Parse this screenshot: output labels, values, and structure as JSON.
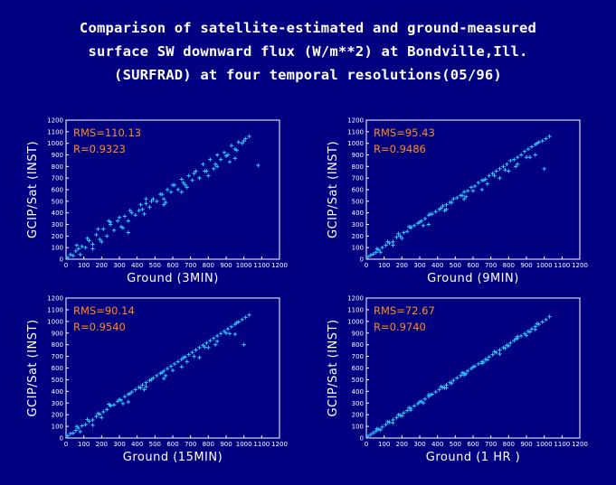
{
  "title_lines": [
    "Comparison of satellite-estimated and ground-measured",
    "surface SW downward flux (W/m**2) at Bondville,Ill.",
    "(SURFRAD) at four temporal resolutions(05/96)"
  ],
  "colors": {
    "background": "#000080",
    "axes": "#ffffff",
    "points": "#33ccff",
    "stats": "#ff8c1a"
  },
  "chart_data": [
    {
      "type": "scatter",
      "xlabel": "Ground (3MIN)",
      "ylabel": "GCIP/Sat (INST)",
      "xlim": [
        0,
        1200
      ],
      "ylim": [
        0,
        1200
      ],
      "xticks": [
        0,
        100,
        200,
        300,
        400,
        500,
        600,
        700,
        800,
        900,
        1000,
        1100,
        1200
      ],
      "yticks": [
        0,
        100,
        200,
        300,
        400,
        500,
        600,
        700,
        800,
        900,
        1000,
        1100,
        1200
      ],
      "annotations": [
        "RMS=110.13",
        "R=0.9323"
      ],
      "x": [
        10,
        25,
        40,
        55,
        70,
        90,
        110,
        130,
        150,
        170,
        190,
        210,
        230,
        250,
        270,
        290,
        310,
        330,
        350,
        370,
        390,
        410,
        430,
        450,
        470,
        490,
        510,
        530,
        550,
        570,
        590,
        610,
        630,
        650,
        670,
        690,
        710,
        730,
        750,
        770,
        790,
        810,
        830,
        850,
        870,
        890,
        910,
        930,
        950,
        970,
        990,
        1010,
        1030,
        60,
        120,
        180,
        240,
        300,
        360,
        420,
        480,
        540,
        600,
        660,
        720,
        780,
        840,
        900,
        960,
        150,
        250,
        350,
        450,
        550,
        650,
        750,
        850,
        950,
        1080,
        80,
        200,
        320,
        440,
        560,
        680,
        800,
        920,
        1000
      ],
      "y": [
        15,
        40,
        30,
        70,
        90,
        110,
        100,
        160,
        130,
        210,
        170,
        260,
        200,
        300,
        250,
        330,
        280,
        370,
        330,
        400,
        380,
        420,
        430,
        480,
        450,
        520,
        500,
        560,
        520,
        600,
        580,
        640,
        600,
        690,
        640,
        720,
        680,
        760,
        700,
        820,
        760,
        860,
        780,
        900,
        860,
        920,
        900,
        980,
        950,
        1010,
        1000,
        1040,
        1060,
        120,
        180,
        260,
        330,
        360,
        420,
        470,
        500,
        560,
        640,
        660,
        740,
        760,
        820,
        890,
        940,
        90,
        320,
        230,
        520,
        470,
        580,
        700,
        800,
        870,
        810,
        40,
        150,
        270,
        390,
        490,
        620,
        720,
        840,
        1020
      ]
    },
    {
      "type": "scatter",
      "xlabel": "Ground (9MIN)",
      "ylabel": "GCIP/Sat (INST)",
      "xlim": [
        0,
        1200
      ],
      "ylim": [
        0,
        1200
      ],
      "xticks": [
        0,
        100,
        200,
        300,
        400,
        500,
        600,
        700,
        800,
        900,
        1000,
        1100,
        1200
      ],
      "yticks": [
        0,
        100,
        200,
        300,
        400,
        500,
        600,
        700,
        800,
        900,
        1000,
        1100,
        1200
      ],
      "annotations": [
        "RMS=95.43",
        "R=0.9486"
      ],
      "x": [
        10,
        25,
        40,
        55,
        70,
        90,
        110,
        130,
        150,
        170,
        190,
        210,
        230,
        250,
        270,
        290,
        310,
        330,
        350,
        370,
        390,
        410,
        430,
        450,
        470,
        490,
        510,
        530,
        550,
        570,
        590,
        610,
        630,
        650,
        670,
        690,
        710,
        730,
        750,
        770,
        790,
        810,
        830,
        850,
        870,
        890,
        910,
        930,
        950,
        970,
        990,
        1010,
        1030,
        60,
        120,
        180,
        240,
        300,
        360,
        420,
        480,
        540,
        600,
        660,
        720,
        780,
        840,
        900,
        960,
        150,
        250,
        350,
        450,
        550,
        650,
        750,
        850,
        950,
        1000,
        80,
        200,
        320,
        440,
        560,
        680,
        800,
        920
      ],
      "y": [
        20,
        35,
        45,
        60,
        80,
        100,
        120,
        140,
        150,
        190,
        200,
        230,
        240,
        280,
        290,
        310,
        330,
        350,
        380,
        390,
        410,
        430,
        460,
        470,
        490,
        520,
        530,
        550,
        580,
        590,
        620,
        630,
        660,
        680,
        690,
        720,
        740,
        760,
        780,
        800,
        820,
        850,
        860,
        880,
        900,
        930,
        950,
        970,
        990,
        1010,
        1020,
        1040,
        1060,
        90,
        150,
        220,
        280,
        320,
        390,
        440,
        490,
        550,
        590,
        680,
        720,
        770,
        800,
        880,
        1000,
        120,
        270,
        300,
        430,
        520,
        600,
        700,
        820,
        900,
        780,
        60,
        180,
        290,
        420,
        540,
        650,
        760,
        880
      ]
    },
    {
      "type": "scatter",
      "xlabel": "Ground (15MIN)",
      "ylabel": "GCIP/Sat (INST)",
      "xlim": [
        0,
        1200
      ],
      "ylim": [
        0,
        1200
      ],
      "xticks": [
        0,
        100,
        200,
        300,
        400,
        500,
        600,
        700,
        800,
        900,
        1000,
        1100,
        1200
      ],
      "yticks": [
        0,
        100,
        200,
        300,
        400,
        500,
        600,
        700,
        800,
        900,
        1000,
        1100,
        1200
      ],
      "annotations": [
        "RMS=90.14",
        "R=0.9540"
      ],
      "x": [
        10,
        25,
        40,
        55,
        70,
        90,
        110,
        130,
        150,
        170,
        190,
        210,
        230,
        250,
        270,
        290,
        310,
        330,
        350,
        370,
        390,
        410,
        430,
        450,
        470,
        490,
        510,
        530,
        550,
        570,
        590,
        610,
        630,
        650,
        670,
        690,
        710,
        730,
        750,
        770,
        790,
        810,
        830,
        850,
        870,
        890,
        910,
        930,
        950,
        970,
        990,
        1010,
        1030,
        60,
        120,
        180,
        240,
        300,
        360,
        420,
        480,
        540,
        600,
        660,
        720,
        780,
        840,
        900,
        960,
        150,
        250,
        350,
        450,
        550,
        650,
        750,
        850,
        950,
        1000,
        80,
        200,
        320,
        440,
        560,
        680,
        800,
        920
      ],
      "y": [
        18,
        38,
        42,
        65,
        85,
        105,
        115,
        145,
        155,
        185,
        205,
        225,
        245,
        275,
        285,
        315,
        325,
        355,
        375,
        395,
        415,
        435,
        455,
        475,
        495,
        515,
        535,
        555,
        575,
        595,
        615,
        635,
        655,
        675,
        695,
        715,
        735,
        755,
        775,
        795,
        815,
        835,
        855,
        875,
        895,
        915,
        935,
        955,
        975,
        995,
        1015,
        1035,
        1055,
        100,
        160,
        210,
        290,
        330,
        380,
        430,
        500,
        560,
        580,
        690,
        700,
        780,
        800,
        900,
        990,
        110,
        280,
        310,
        440,
        510,
        610,
        690,
        830,
        890,
        800,
        55,
        175,
        295,
        415,
        535,
        655,
        775,
        895
      ]
    },
    {
      "type": "scatter",
      "xlabel": "Ground (1 HR )",
      "ylabel": "GCIP/Sat (INST)",
      "xlim": [
        0,
        1200
      ],
      "ylim": [
        0,
        1200
      ],
      "xticks": [
        0,
        100,
        200,
        300,
        400,
        500,
        600,
        700,
        800,
        900,
        1000,
        1100,
        1200
      ],
      "yticks": [
        0,
        100,
        200,
        300,
        400,
        500,
        600,
        700,
        800,
        900,
        1000,
        1100,
        1200
      ],
      "annotations": [
        "RMS=72.67",
        "R=0.9740"
      ],
      "x": [
        10,
        25,
        40,
        55,
        70,
        90,
        110,
        130,
        150,
        170,
        190,
        210,
        230,
        250,
        270,
        290,
        310,
        330,
        350,
        370,
        390,
        410,
        430,
        450,
        470,
        490,
        510,
        530,
        550,
        570,
        590,
        610,
        630,
        650,
        670,
        690,
        710,
        730,
        750,
        770,
        790,
        810,
        830,
        850,
        870,
        890,
        910,
        930,
        950,
        970,
        990,
        1010,
        1030,
        60,
        120,
        180,
        240,
        300,
        360,
        420,
        480,
        540,
        600,
        660,
        720,
        780,
        840,
        900,
        960,
        150,
        250,
        350,
        450,
        550,
        650,
        750,
        850,
        950,
        80,
        200,
        320,
        440,
        560,
        680,
        800,
        920
      ],
      "y": [
        15,
        30,
        45,
        60,
        75,
        95,
        115,
        135,
        155,
        175,
        195,
        215,
        235,
        255,
        275,
        295,
        315,
        335,
        355,
        375,
        395,
        415,
        435,
        455,
        475,
        495,
        515,
        535,
        555,
        575,
        595,
        615,
        635,
        655,
        675,
        695,
        715,
        735,
        755,
        775,
        795,
        815,
        835,
        855,
        875,
        895,
        915,
        935,
        955,
        975,
        995,
        1015,
        1040,
        80,
        140,
        200,
        260,
        310,
        370,
        440,
        470,
        560,
        610,
        650,
        740,
        770,
        850,
        880,
        980,
        130,
        240,
        370,
        430,
        540,
        640,
        720,
        870,
        930,
        70,
        190,
        300,
        430,
        550,
        670,
        790,
        910
      ]
    }
  ]
}
